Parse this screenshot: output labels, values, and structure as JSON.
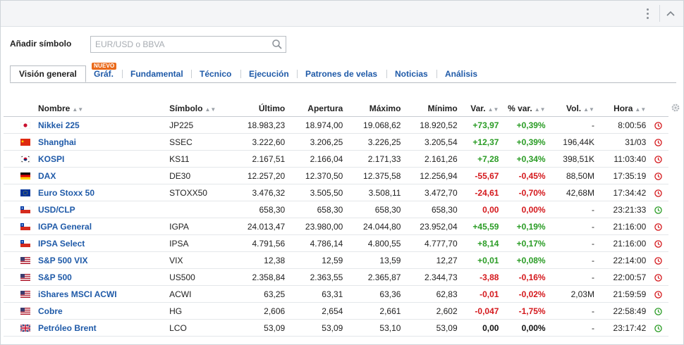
{
  "search": {
    "label": "Añadir símbolo",
    "placeholder": "EUR/USD o BBVA",
    "value": ""
  },
  "tabs": [
    {
      "label": "Visión general",
      "active": true
    },
    {
      "label": "Gráf.",
      "badge": "NUEVO"
    },
    {
      "label": "Fundamental"
    },
    {
      "label": "Técnico"
    },
    {
      "label": "Ejecución"
    },
    {
      "label": "Patrones de velas"
    },
    {
      "label": "Noticias"
    },
    {
      "label": "Análisis"
    }
  ],
  "columns": {
    "nombre": "Nombre",
    "simbolo": "Símbolo",
    "ultimo": "Último",
    "apertura": "Apertura",
    "maximo": "Máximo",
    "minimo": "Mínimo",
    "var": "Var.",
    "pvar": "% var.",
    "vol": "Vol.",
    "hora": "Hora"
  },
  "colors": {
    "positive": "#2a9c25",
    "negative": "#d4181c",
    "link": "#1f5aa8",
    "clock_closed": "#d4181c",
    "clock_open": "#2a9c25"
  },
  "rows": [
    {
      "flag": "japan-flag-icon",
      "name": "Nikkei 225",
      "symbol": "JP225",
      "last": "18.983,23",
      "open": "18.974,00",
      "high": "19.068,62",
      "low": "18.920,52",
      "chg": "+73,97",
      "pct": "+0,39%",
      "vol": "-",
      "time": "8:00:56",
      "dir": "pos",
      "clock": "closed"
    },
    {
      "flag": "china-flag-icon",
      "name": "Shanghai",
      "symbol": "SSEC",
      "last": "3.222,60",
      "open": "3.206,25",
      "high": "3.226,25",
      "low": "3.205,54",
      "chg": "+12,37",
      "pct": "+0,39%",
      "vol": "196,44K",
      "time": "31/03",
      "dir": "pos",
      "clock": "closed"
    },
    {
      "flag": "korea-flag-icon",
      "name": "KOSPI",
      "symbol": "KS11",
      "last": "2.167,51",
      "open": "2.166,04",
      "high": "2.171,33",
      "low": "2.161,26",
      "chg": "+7,28",
      "pct": "+0,34%",
      "vol": "398,51K",
      "time": "11:03:40",
      "dir": "pos",
      "clock": "closed"
    },
    {
      "flag": "germany-flag-icon",
      "name": "DAX",
      "symbol": "DE30",
      "last": "12.257,20",
      "open": "12.370,50",
      "high": "12.375,58",
      "low": "12.256,94",
      "chg": "-55,67",
      "pct": "-0,45%",
      "vol": "88,50M",
      "time": "17:35:19",
      "dir": "neg",
      "clock": "closed"
    },
    {
      "flag": "eu-flag-icon",
      "name": "Euro Stoxx 50",
      "symbol": "STOXX50",
      "last": "3.476,32",
      "open": "3.505,50",
      "high": "3.508,11",
      "low": "3.472,70",
      "chg": "-24,61",
      "pct": "-0,70%",
      "vol": "42,68M",
      "time": "17:34:42",
      "dir": "neg",
      "clock": "closed"
    },
    {
      "flag": "chile-flag-icon",
      "name": "USD/CLP",
      "symbol": "",
      "last": "658,30",
      "open": "658,30",
      "high": "658,30",
      "low": "658,30",
      "chg": "0,00",
      "pct": "0,00%",
      "vol": "-",
      "time": "23:21:33",
      "dir": "zero",
      "clock": "open"
    },
    {
      "flag": "chile-flag-icon",
      "name": "IGPA General",
      "symbol": "IGPA",
      "last": "24.013,47",
      "open": "23.980,00",
      "high": "24.044,80",
      "low": "23.952,04",
      "chg": "+45,59",
      "pct": "+0,19%",
      "vol": "-",
      "time": "21:16:00",
      "dir": "pos",
      "clock": "closed"
    },
    {
      "flag": "chile-flag-icon",
      "name": "IPSA Select",
      "symbol": "IPSA",
      "last": "4.791,56",
      "open": "4.786,14",
      "high": "4.800,55",
      "low": "4.777,70",
      "chg": "+8,14",
      "pct": "+0,17%",
      "vol": "-",
      "time": "21:16:00",
      "dir": "pos",
      "clock": "closed"
    },
    {
      "flag": "usa-flag-icon",
      "name": "S&P 500 VIX",
      "symbol": "VIX",
      "last": "12,38",
      "open": "12,59",
      "high": "13,59",
      "low": "12,27",
      "chg": "+0,01",
      "pct": "+0,08%",
      "vol": "-",
      "time": "22:14:00",
      "dir": "pos",
      "clock": "closed"
    },
    {
      "flag": "usa-flag-icon",
      "name": "S&P 500",
      "symbol": "US500",
      "last": "2.358,84",
      "open": "2.363,55",
      "high": "2.365,87",
      "low": "2.344,73",
      "chg": "-3,88",
      "pct": "-0,16%",
      "vol": "-",
      "time": "22:00:57",
      "dir": "neg",
      "clock": "closed"
    },
    {
      "flag": "usa-flag-icon",
      "name": "iShares MSCI ACWI",
      "symbol": "ACWI",
      "last": "63,25",
      "open": "63,31",
      "high": "63,36",
      "low": "62,83",
      "chg": "-0,01",
      "pct": "-0,02%",
      "vol": "2,03M",
      "time": "21:59:59",
      "dir": "neg",
      "clock": "closed"
    },
    {
      "flag": "usa-flag-icon",
      "name": "Cobre",
      "symbol": "HG",
      "last": "2,606",
      "open": "2,654",
      "high": "2,661",
      "low": "2,602",
      "chg": "-0,047",
      "pct": "-1,75%",
      "vol": "-",
      "time": "22:58:49",
      "dir": "neg",
      "clock": "open"
    },
    {
      "flag": "uk-flag-icon",
      "name": "Petróleo Brent",
      "symbol": "LCO",
      "last": "53,09",
      "open": "53,09",
      "high": "53,10",
      "low": "53,09",
      "chg": "0,00",
      "pct": "0,00%",
      "vol": "-",
      "time": "23:17:42",
      "dir": "neutral",
      "clock": "open"
    }
  ]
}
